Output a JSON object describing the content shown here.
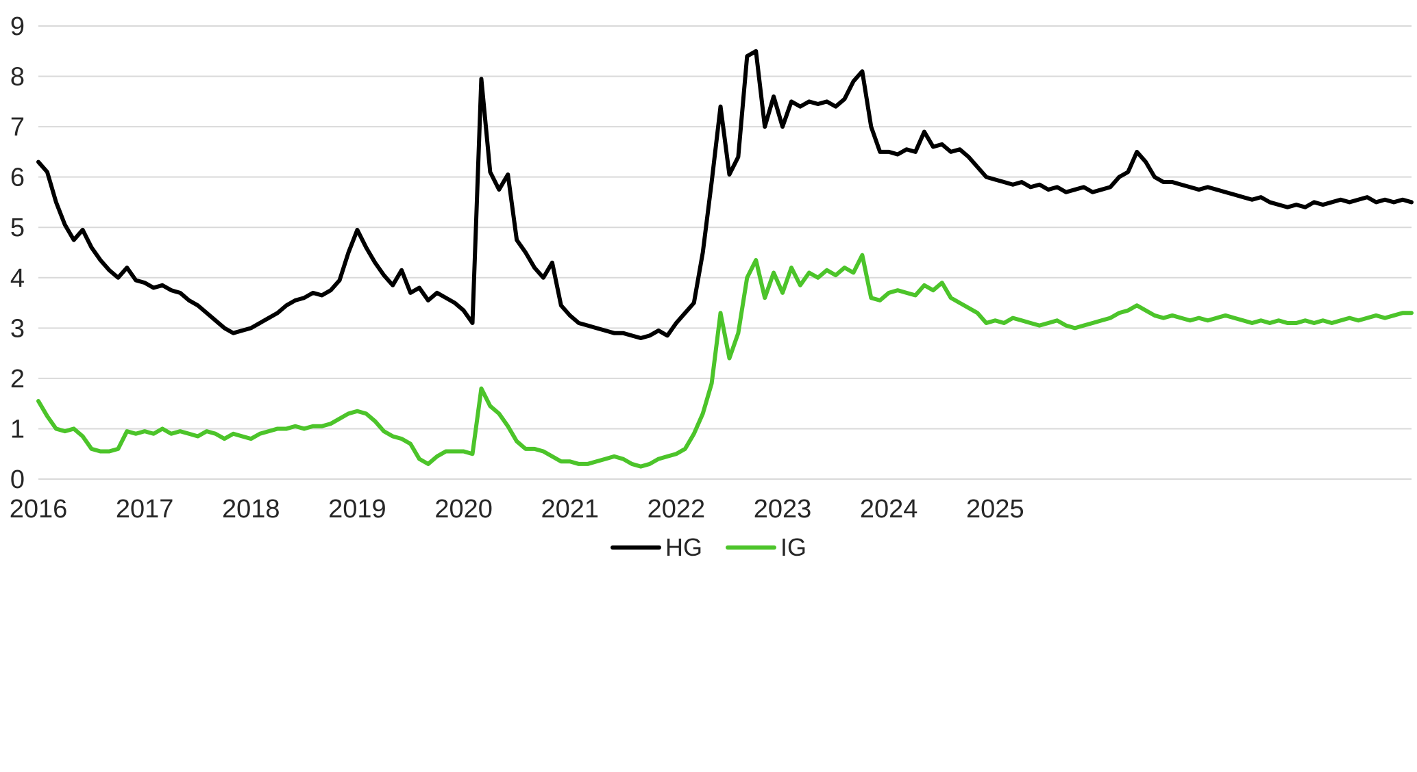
{
  "chart_data": {
    "type": "line",
    "title": "",
    "xlabel": "",
    "ylabel": "",
    "ylim": [
      0,
      9
    ],
    "yticks": [
      0,
      1,
      2,
      3,
      4,
      5,
      6,
      7,
      8,
      9
    ],
    "grid": "horizontal",
    "gridline_color": "#d9d9d9",
    "axis_text_color": "#262626",
    "background_color": "#ffffff",
    "legend_position": "bottom-center",
    "x_axis": {
      "tick_labels": [
        "2016",
        "2017",
        "2018",
        "2019",
        "2020",
        "2021",
        "2022",
        "2023",
        "2024",
        "2025"
      ],
      "tick_indices": [
        0,
        12,
        24,
        36,
        48,
        60,
        72,
        84,
        96,
        108
      ],
      "sampling": "2016-2024 monthly (12 pts per year), 2025 at ~weekly density (48 pts) so the final year spans the right third of the plot as in the source"
    },
    "series": [
      {
        "name": "HG",
        "color": "#000000",
        "values": [
          6.3,
          6.1,
          5.5,
          5.05,
          4.75,
          4.95,
          4.6,
          4.35,
          4.15,
          4.0,
          4.2,
          3.95,
          3.9,
          3.8,
          3.85,
          3.75,
          3.7,
          3.55,
          3.45,
          3.3,
          3.15,
          3.0,
          2.9,
          2.95,
          3.0,
          3.1,
          3.2,
          3.3,
          3.45,
          3.55,
          3.6,
          3.7,
          3.65,
          3.75,
          3.95,
          4.5,
          4.95,
          4.6,
          4.3,
          4.05,
          3.85,
          4.15,
          3.7,
          3.8,
          3.55,
          3.7,
          3.6,
          3.5,
          3.35,
          3.1,
          7.95,
          6.1,
          5.75,
          6.05,
          4.75,
          4.5,
          4.2,
          4.0,
          4.3,
          3.45,
          3.25,
          3.1,
          3.05,
          3.0,
          2.95,
          2.9,
          2.9,
          2.85,
          2.8,
          2.85,
          2.95,
          2.85,
          3.1,
          3.3,
          3.5,
          4.5,
          5.9,
          7.4,
          6.05,
          6.4,
          8.4,
          8.5,
          7.0,
          7.6,
          7.0,
          7.5,
          7.4,
          7.5,
          7.45,
          7.5,
          7.4,
          7.55,
          7.9,
          8.1,
          7.0,
          6.5,
          6.5,
          6.45,
          6.55,
          6.5,
          6.9,
          6.6,
          6.65,
          6.5,
          6.55,
          6.4,
          6.2,
          6.0,
          5.95,
          5.9,
          5.85,
          5.9,
          5.8,
          5.85,
          5.75,
          5.8,
          5.7,
          5.75,
          5.8,
          5.7,
          5.75,
          5.8,
          6.0,
          6.1,
          6.5,
          6.3,
          6.0,
          5.9,
          5.9,
          5.85,
          5.8,
          5.75,
          5.8,
          5.75,
          5.7,
          5.65,
          5.6,
          5.55,
          5.6,
          5.5,
          5.45,
          5.4,
          5.45,
          5.4,
          5.5,
          5.45,
          5.5,
          5.55,
          5.5,
          5.55,
          5.6,
          5.5,
          5.55,
          5.5,
          5.55,
          5.5
        ]
      },
      {
        "name": "IG",
        "color": "#4cc42a",
        "values": [
          1.55,
          1.25,
          1.0,
          0.95,
          1.0,
          0.85,
          0.6,
          0.55,
          0.55,
          0.6,
          0.95,
          0.9,
          0.95,
          0.9,
          1.0,
          0.9,
          0.95,
          0.9,
          0.85,
          0.95,
          0.9,
          0.8,
          0.9,
          0.85,
          0.8,
          0.9,
          0.95,
          1.0,
          1.0,
          1.05,
          1.0,
          1.05,
          1.05,
          1.1,
          1.2,
          1.3,
          1.35,
          1.3,
          1.15,
          0.95,
          0.85,
          0.8,
          0.7,
          0.4,
          0.3,
          0.45,
          0.55,
          0.55,
          0.55,
          0.5,
          1.8,
          1.45,
          1.3,
          1.05,
          0.75,
          0.6,
          0.6,
          0.55,
          0.45,
          0.35,
          0.35,
          0.3,
          0.3,
          0.35,
          0.4,
          0.45,
          0.4,
          0.3,
          0.25,
          0.3,
          0.4,
          0.45,
          0.5,
          0.6,
          0.9,
          1.3,
          1.9,
          3.3,
          2.4,
          2.9,
          4.0,
          4.35,
          3.6,
          4.1,
          3.7,
          4.2,
          3.85,
          4.1,
          4.0,
          4.15,
          4.05,
          4.2,
          4.1,
          4.45,
          3.6,
          3.55,
          3.7,
          3.75,
          3.7,
          3.65,
          3.85,
          3.75,
          3.9,
          3.6,
          3.5,
          3.4,
          3.3,
          3.1,
          3.15,
          3.1,
          3.2,
          3.15,
          3.1,
          3.05,
          3.1,
          3.15,
          3.05,
          3.0,
          3.05,
          3.1,
          3.15,
          3.2,
          3.3,
          3.35,
          3.45,
          3.35,
          3.25,
          3.2,
          3.25,
          3.2,
          3.15,
          3.2,
          3.15,
          3.2,
          3.25,
          3.2,
          3.15,
          3.1,
          3.15,
          3.1,
          3.15,
          3.1,
          3.1,
          3.15,
          3.1,
          3.15,
          3.1,
          3.15,
          3.2,
          3.15,
          3.2,
          3.25,
          3.2,
          3.25,
          3.3,
          3.3
        ]
      }
    ]
  }
}
